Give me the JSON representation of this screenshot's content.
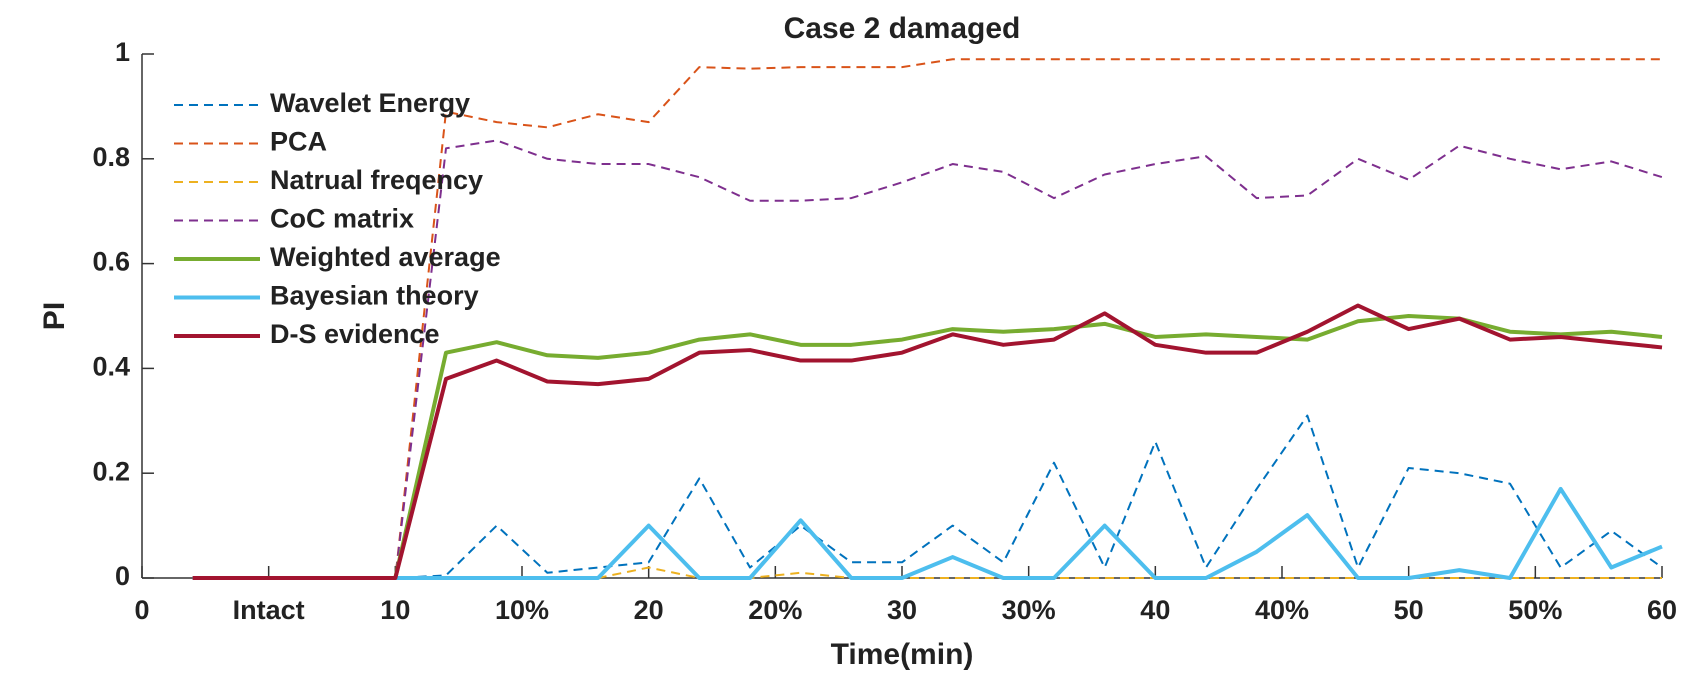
{
  "chart_data": {
    "type": "line",
    "title": "Case 2 damaged",
    "x_label": "Time(min)",
    "y_label": "PI",
    "x": [
      2,
      4,
      6,
      8,
      10,
      12,
      14,
      16,
      18,
      20,
      22,
      24,
      26,
      28,
      30,
      32,
      34,
      36,
      38,
      40,
      42,
      44,
      46,
      48,
      50,
      52,
      54,
      56,
      58,
      60
    ],
    "series": [
      {
        "name": "Wavelet Energy",
        "color": "#0072bd",
        "line_style": "dashed",
        "line_width": 2,
        "values": [
          0,
          0,
          0,
          0,
          0,
          0.005,
          0.1,
          0.01,
          0.02,
          0.03,
          0.19,
          0.02,
          0.1,
          0.03,
          0.03,
          0.1,
          0.03,
          0.22,
          0.02,
          0.26,
          0.02,
          0.17,
          0.31,
          0.02,
          0.21,
          0.2,
          0.18,
          0.02,
          0.09,
          0.02
        ]
      },
      {
        "name": "PCA",
        "color": "#d95319",
        "line_style": "dashed",
        "line_width": 2,
        "values": [
          0,
          0,
          0,
          0,
          0,
          0.89,
          0.87,
          0.86,
          0.885,
          0.87,
          0.975,
          0.972,
          0.975,
          0.975,
          0.975,
          0.99,
          0.99,
          0.99,
          0.99,
          0.99,
          0.99,
          0.99,
          0.99,
          0.99,
          0.99,
          0.99,
          0.99,
          0.99,
          0.99,
          0.99
        ]
      },
      {
        "name": "Natrual freqency",
        "color": "#edb120",
        "line_style": "dashed",
        "line_width": 2,
        "values": [
          0,
          0,
          0,
          0,
          0,
          0,
          0,
          0,
          0,
          0.02,
          0,
          0,
          0.01,
          0,
          0,
          0,
          0,
          0,
          0,
          0,
          0,
          0,
          0,
          0,
          0,
          0,
          0,
          0,
          0,
          0
        ]
      },
      {
        "name": "CoC matrix",
        "color": "#7e2f8e",
        "line_style": "dashed",
        "line_width": 2,
        "values": [
          0,
          0,
          0,
          0,
          0,
          0.82,
          0.835,
          0.8,
          0.79,
          0.79,
          0.765,
          0.72,
          0.72,
          0.725,
          0.755,
          0.79,
          0.775,
          0.725,
          0.77,
          0.79,
          0.805,
          0.725,
          0.73,
          0.8,
          0.76,
          0.825,
          0.8,
          0.78,
          0.795,
          0.765
        ]
      },
      {
        "name": "Weighted average",
        "color": "#77ac30",
        "line_style": "solid",
        "line_width": 4,
        "values": [
          0,
          0,
          0,
          0,
          0,
          0.43,
          0.45,
          0.425,
          0.42,
          0.43,
          0.455,
          0.465,
          0.445,
          0.445,
          0.455,
          0.475,
          0.47,
          0.475,
          0.485,
          0.46,
          0.465,
          0.46,
          0.455,
          0.49,
          0.5,
          0.495,
          0.47,
          0.465,
          0.47,
          0.46
        ]
      },
      {
        "name": "Bayesian theory",
        "color": "#4dbeee",
        "line_style": "solid",
        "line_width": 4,
        "values": [
          0,
          0,
          0,
          0,
          0,
          0,
          0,
          0,
          0,
          0.1,
          0,
          0,
          0.11,
          0,
          0,
          0.04,
          0,
          0,
          0.1,
          0,
          0,
          0.05,
          0.12,
          0,
          0,
          0.015,
          0,
          0.17,
          0.02,
          0.06
        ]
      },
      {
        "name": "D-S evidence",
        "color": "#a2142f",
        "line_style": "solid",
        "line_width": 4,
        "values": [
          0,
          0,
          0,
          0,
          0,
          0.38,
          0.415,
          0.375,
          0.37,
          0.38,
          0.43,
          0.435,
          0.415,
          0.415,
          0.43,
          0.465,
          0.445,
          0.455,
          0.505,
          0.445,
          0.43,
          0.43,
          0.47,
          0.52,
          0.475,
          0.495,
          0.455,
          0.46,
          0.45,
          0.44
        ]
      }
    ],
    "xlim": [
      0,
      60
    ],
    "xticks": [
      0,
      {
        "value": 5,
        "label": "Intact"
      },
      10,
      {
        "value": 15,
        "label": "10%"
      },
      20,
      {
        "value": 25,
        "label": "20%"
      },
      30,
      {
        "value": 35,
        "label": "30%"
      },
      40,
      {
        "value": 45,
        "label": "40%"
      },
      50,
      {
        "value": 55,
        "label": "50%"
      },
      60
    ],
    "ylim": [
      0,
      1
    ],
    "yticks": [
      0,
      0.2,
      0.4,
      0.6,
      0.8,
      1
    ],
    "legend": "upper left",
    "grid": false
  }
}
